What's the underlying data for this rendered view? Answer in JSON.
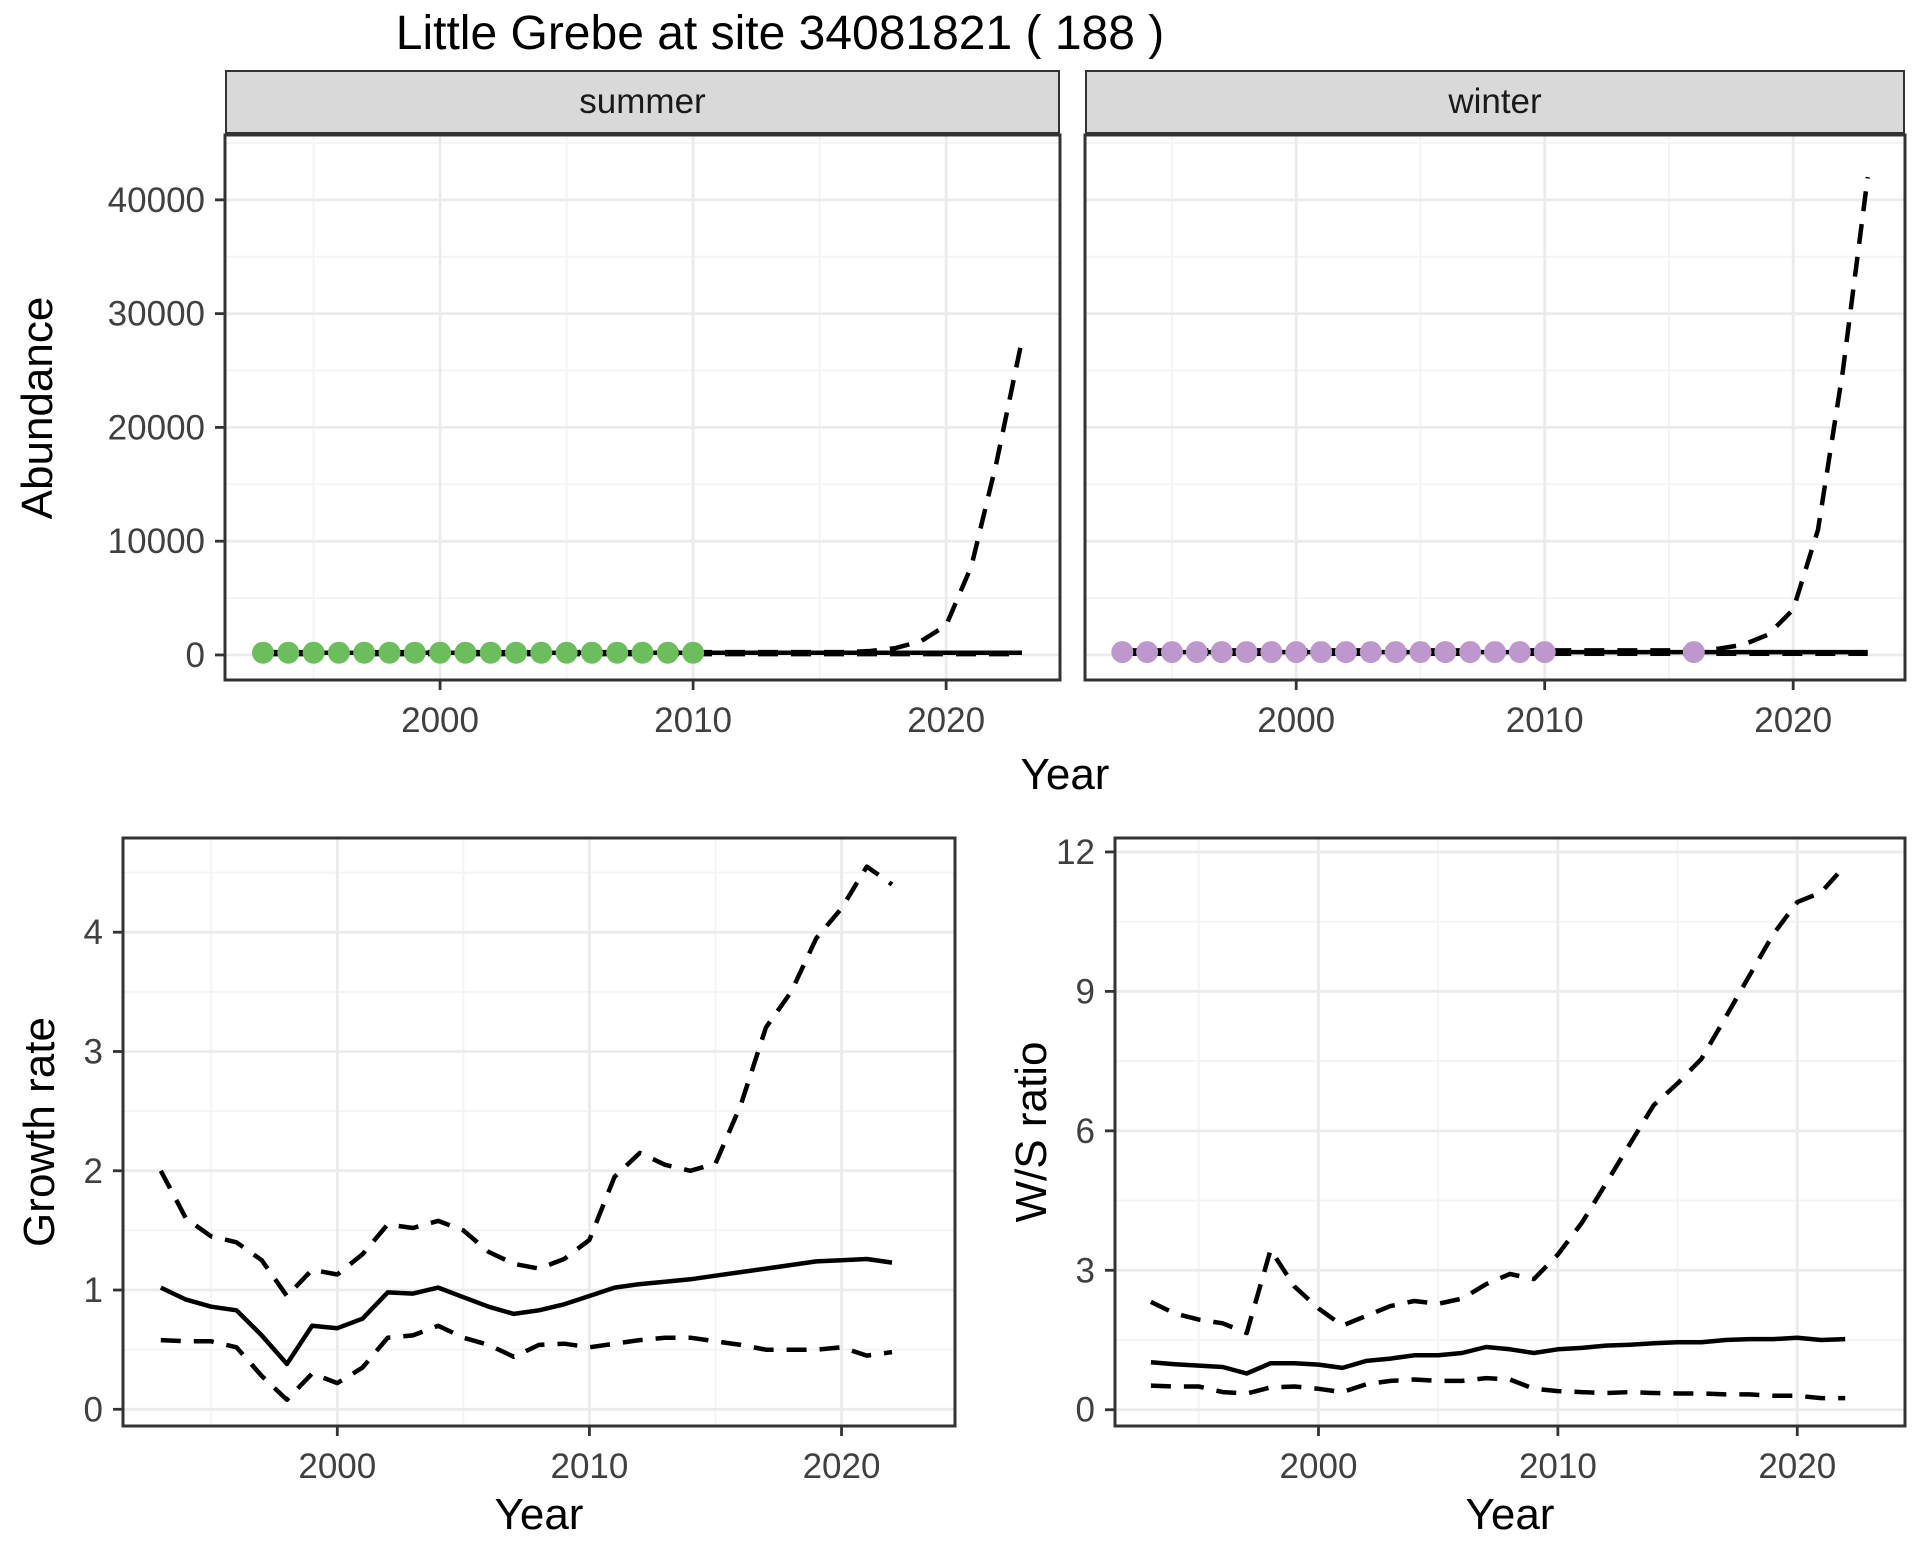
{
  "title": "Little Grebe at site 34081821 ( 188 )",
  "colors": {
    "observed_summer": "#6CBE5C",
    "observed_winter": "#BE97CD",
    "fit_line": "#000000",
    "strip_bg": "#D9D9D9",
    "strip_border": "#333333",
    "panel_border": "#333333",
    "grid_major": "#EBEBEB",
    "grid_minor": "#F4F4F4",
    "tick_label": "#404040",
    "tick_mark": "#333333"
  },
  "chart_data": [
    {
      "type": "line",
      "facet_label": "summer",
      "xlabel": "Year",
      "ylabel": "Abundance",
      "xlim": [
        1991.5,
        2024.5
      ],
      "ylim": [
        -2200,
        45700
      ],
      "xticks": [
        2000,
        2010,
        2020
      ],
      "yticks": [
        0,
        10000,
        20000,
        30000,
        40000
      ],
      "xminor": [
        1995,
        2005,
        2015
      ],
      "yminor": [
        5000,
        15000,
        25000,
        35000,
        45000
      ],
      "grid": true,
      "legend": "none",
      "series": [
        {
          "name": "median_fit",
          "style": "solid",
          "color": "#000000",
          "x": [
            1993,
            1994,
            1995,
            1996,
            1997,
            1998,
            1999,
            2000,
            2001,
            2002,
            2003,
            2004,
            2005,
            2006,
            2007,
            2008,
            2009,
            2010,
            2011,
            2012,
            2013,
            2014,
            2015,
            2016,
            2017,
            2018,
            2019,
            2020,
            2021,
            2022,
            2023
          ],
          "y": [
            200,
            200,
            200,
            200,
            200,
            200,
            200,
            200,
            200,
            200,
            200,
            200,
            200,
            200,
            200,
            200,
            200,
            200,
            200,
            200,
            200,
            200,
            200,
            200,
            200,
            200,
            200,
            200,
            200,
            200,
            200
          ]
        },
        {
          "name": "upper_ci",
          "style": "dashed",
          "color": "#000000",
          "x": [
            1993,
            1994,
            1995,
            1996,
            1997,
            1998,
            1999,
            2000,
            2001,
            2002,
            2003,
            2004,
            2005,
            2006,
            2007,
            2008,
            2009,
            2010,
            2011,
            2012,
            2013,
            2014,
            2015,
            2016,
            2017,
            2018,
            2019,
            2020,
            2021,
            2022,
            2023
          ],
          "y": [
            250,
            250,
            250,
            250,
            250,
            250,
            250,
            250,
            250,
            250,
            250,
            250,
            250,
            250,
            250,
            250,
            250,
            250,
            250,
            250,
            250,
            250,
            250,
            250,
            350,
            600,
            1200,
            2600,
            7800,
            17000,
            27700
          ]
        },
        {
          "name": "lower_ci",
          "style": "dashed",
          "color": "#000000",
          "x": [
            1993,
            1994,
            1995,
            1996,
            1997,
            1998,
            1999,
            2000,
            2001,
            2002,
            2003,
            2004,
            2005,
            2006,
            2007,
            2008,
            2009,
            2010,
            2011,
            2012,
            2013,
            2014,
            2015,
            2016,
            2017,
            2018,
            2019,
            2020,
            2021,
            2022,
            2023
          ],
          "y": [
            80,
            80,
            80,
            80,
            80,
            80,
            80,
            80,
            80,
            80,
            80,
            80,
            80,
            80,
            80,
            80,
            80,
            80,
            80,
            80,
            80,
            80,
            80,
            80,
            80,
            80,
            80,
            80,
            80,
            80,
            80
          ]
        },
        {
          "name": "observed",
          "style": "points",
          "color": "#6CBE5C",
          "x": [
            1993,
            1994,
            1995,
            1996,
            1997,
            1998,
            1999,
            2000,
            2001,
            2002,
            2003,
            2004,
            2005,
            2006,
            2007,
            2008,
            2009,
            2010
          ],
          "y": [
            200,
            200,
            200,
            200,
            200,
            200,
            200,
            200,
            200,
            200,
            200,
            200,
            200,
            200,
            200,
            200,
            200,
            200
          ]
        }
      ]
    },
    {
      "type": "line",
      "facet_label": "winter",
      "xlabel": "Year",
      "ylabel": "Abundance",
      "xlim": [
        1991.5,
        2024.5
      ],
      "ylim": [
        -2200,
        45700
      ],
      "xticks": [
        2000,
        2010,
        2020
      ],
      "yticks": [
        0,
        10000,
        20000,
        30000,
        40000
      ],
      "xminor": [
        1995,
        2005,
        2015
      ],
      "yminor": [
        5000,
        15000,
        25000,
        35000,
        45000
      ],
      "grid": true,
      "legend": "none",
      "series": [
        {
          "name": "median_fit",
          "style": "solid",
          "color": "#000000",
          "x": [
            1993,
            1994,
            1995,
            1996,
            1997,
            1998,
            1999,
            2000,
            2001,
            2002,
            2003,
            2004,
            2005,
            2006,
            2007,
            2008,
            2009,
            2010,
            2011,
            2012,
            2013,
            2014,
            2015,
            2016,
            2017,
            2018,
            2019,
            2020,
            2021,
            2022,
            2023
          ],
          "y": [
            250,
            250,
            250,
            250,
            250,
            250,
            250,
            250,
            250,
            250,
            250,
            250,
            250,
            250,
            250,
            250,
            250,
            250,
            250,
            250,
            250,
            250,
            250,
            250,
            250,
            250,
            250,
            250,
            250,
            250,
            250
          ]
        },
        {
          "name": "upper_ci",
          "style": "dashed",
          "color": "#000000",
          "x": [
            1993,
            1994,
            1995,
            1996,
            1997,
            1998,
            1999,
            2000,
            2001,
            2002,
            2003,
            2004,
            2005,
            2006,
            2007,
            2008,
            2009,
            2010,
            2011,
            2012,
            2013,
            2014,
            2015,
            2016,
            2017,
            2018,
            2019,
            2020,
            2021,
            2022,
            2023
          ],
          "y": [
            400,
            400,
            400,
            400,
            400,
            400,
            400,
            400,
            400,
            400,
            400,
            400,
            400,
            400,
            400,
            400,
            400,
            400,
            400,
            400,
            400,
            400,
            400,
            450,
            550,
            900,
            1800,
            4000,
            11000,
            25000,
            42000
          ]
        },
        {
          "name": "lower_ci",
          "style": "dashed",
          "color": "#000000",
          "x": [
            1993,
            1994,
            1995,
            1996,
            1997,
            1998,
            1999,
            2000,
            2001,
            2002,
            2003,
            2004,
            2005,
            2006,
            2007,
            2008,
            2009,
            2010,
            2011,
            2012,
            2013,
            2014,
            2015,
            2016,
            2017,
            2018,
            2019,
            2020,
            2021,
            2022,
            2023
          ],
          "y": [
            100,
            100,
            100,
            100,
            100,
            100,
            100,
            100,
            100,
            100,
            100,
            100,
            100,
            100,
            100,
            100,
            100,
            100,
            100,
            100,
            100,
            100,
            100,
            100,
            100,
            100,
            100,
            100,
            100,
            100,
            100
          ]
        },
        {
          "name": "observed",
          "style": "points",
          "color": "#BE97CD",
          "x": [
            1993,
            1994,
            1995,
            1996,
            1997,
            1998,
            1999,
            2000,
            2001,
            2002,
            2003,
            2004,
            2005,
            2006,
            2007,
            2008,
            2009,
            2010,
            2016
          ],
          "y": [
            250,
            250,
            250,
            250,
            250,
            250,
            250,
            250,
            250,
            250,
            250,
            250,
            250,
            250,
            250,
            250,
            250,
            250,
            250
          ]
        }
      ]
    },
    {
      "type": "line",
      "facet_label": "",
      "xlabel": "Year",
      "ylabel": "Growth rate",
      "xlim": [
        1991.5,
        2024.5
      ],
      "ylim": [
        -0.14,
        4.79
      ],
      "xticks": [
        2000,
        2010,
        2020
      ],
      "yticks": [
        0,
        1,
        2,
        3,
        4
      ],
      "xminor": [
        1995,
        2005,
        2015
      ],
      "yminor": [
        0.5,
        1.5,
        2.5,
        3.5,
        4.5
      ],
      "grid": true,
      "legend": "none",
      "series": [
        {
          "name": "median",
          "style": "solid",
          "color": "#000000",
          "x": [
            1993,
            1994,
            1995,
            1996,
            1997,
            1998,
            1999,
            2000,
            2001,
            2002,
            2003,
            2004,
            2005,
            2006,
            2007,
            2008,
            2009,
            2010,
            2011,
            2012,
            2013,
            2014,
            2015,
            2016,
            2017,
            2018,
            2019,
            2020,
            2021,
            2022
          ],
          "y": [
            1.02,
            0.92,
            0.86,
            0.83,
            0.62,
            0.38,
            0.7,
            0.68,
            0.76,
            0.98,
            0.97,
            1.02,
            0.94,
            0.86,
            0.8,
            0.83,
            0.88,
            0.95,
            1.02,
            1.05,
            1.07,
            1.09,
            1.12,
            1.15,
            1.18,
            1.21,
            1.24,
            1.25,
            1.26,
            1.23
          ]
        },
        {
          "name": "upper_ci",
          "style": "dashed",
          "color": "#000000",
          "x": [
            1993,
            1994,
            1995,
            1996,
            1997,
            1998,
            1999,
            2000,
            2001,
            2002,
            2003,
            2004,
            2005,
            2006,
            2007,
            2008,
            2009,
            2010,
            2011,
            2012,
            2013,
            2014,
            2015,
            2016,
            2017,
            2018,
            2019,
            2020,
            2021,
            2022
          ],
          "y": [
            2.0,
            1.6,
            1.45,
            1.4,
            1.25,
            0.95,
            1.17,
            1.13,
            1.3,
            1.55,
            1.52,
            1.58,
            1.5,
            1.32,
            1.22,
            1.18,
            1.26,
            1.42,
            1.95,
            2.15,
            2.05,
            2.0,
            2.06,
            2.55,
            3.2,
            3.5,
            3.95,
            4.2,
            4.55,
            4.4
          ]
        },
        {
          "name": "lower_ci",
          "style": "dashed",
          "color": "#000000",
          "x": [
            1993,
            1994,
            1995,
            1996,
            1997,
            1998,
            1999,
            2000,
            2001,
            2002,
            2003,
            2004,
            2005,
            2006,
            2007,
            2008,
            2009,
            2010,
            2011,
            2012,
            2013,
            2014,
            2015,
            2016,
            2017,
            2018,
            2019,
            2020,
            2021,
            2022
          ],
          "y": [
            0.58,
            0.57,
            0.57,
            0.52,
            0.28,
            0.08,
            0.3,
            0.22,
            0.35,
            0.6,
            0.62,
            0.7,
            0.6,
            0.54,
            0.44,
            0.54,
            0.55,
            0.52,
            0.55,
            0.58,
            0.6,
            0.6,
            0.57,
            0.54,
            0.5,
            0.5,
            0.5,
            0.52,
            0.45,
            0.48
          ]
        }
      ]
    },
    {
      "type": "line",
      "facet_label": "",
      "xlabel": "Year",
      "ylabel": "W/S ratio",
      "xlim": [
        1991.5,
        2024.5
      ],
      "ylim": [
        -0.35,
        12.3
      ],
      "xticks": [
        2000,
        2010,
        2020
      ],
      "yticks": [
        0,
        3,
        6,
        9,
        12
      ],
      "xminor": [
        1995,
        2005,
        2015
      ],
      "yminor": [
        1.5,
        4.5,
        7.5,
        10.5
      ],
      "grid": true,
      "legend": "none",
      "series": [
        {
          "name": "median",
          "style": "solid",
          "color": "#000000",
          "x": [
            1993,
            1994,
            1995,
            1996,
            1997,
            1998,
            1999,
            2000,
            2001,
            2002,
            2003,
            2004,
            2005,
            2006,
            2007,
            2008,
            2009,
            2010,
            2011,
            2012,
            2013,
            2014,
            2015,
            2016,
            2017,
            2018,
            2019,
            2020,
            2021,
            2022
          ],
          "y": [
            1.02,
            0.98,
            0.95,
            0.92,
            0.78,
            1.0,
            1.0,
            0.97,
            0.9,
            1.05,
            1.1,
            1.17,
            1.17,
            1.22,
            1.35,
            1.3,
            1.22,
            1.3,
            1.33,
            1.38,
            1.4,
            1.43,
            1.45,
            1.45,
            1.5,
            1.52,
            1.52,
            1.55,
            1.5,
            1.52
          ]
        },
        {
          "name": "upper_ci",
          "style": "dashed",
          "color": "#000000",
          "x": [
            1993,
            1994,
            1995,
            1996,
            1997,
            1998,
            1999,
            2000,
            2001,
            2002,
            2003,
            2004,
            2005,
            2006,
            2007,
            2008,
            2009,
            2010,
            2011,
            2012,
            2013,
            2014,
            2015,
            2016,
            2017,
            2018,
            2019,
            2020,
            2021,
            2022
          ],
          "y": [
            2.32,
            2.07,
            1.94,
            1.86,
            1.65,
            3.44,
            2.65,
            2.18,
            1.81,
            2.02,
            2.23,
            2.34,
            2.28,
            2.39,
            2.7,
            2.92,
            2.81,
            3.34,
            4.02,
            4.86,
            5.71,
            6.55,
            7.02,
            7.55,
            8.44,
            9.34,
            10.23,
            10.92,
            11.13,
            11.71
          ]
        },
        {
          "name": "lower_ci",
          "style": "dashed",
          "color": "#000000",
          "x": [
            1993,
            1994,
            1995,
            1996,
            1997,
            1998,
            1999,
            2000,
            2001,
            2002,
            2003,
            2004,
            2005,
            2006,
            2007,
            2008,
            2009,
            2010,
            2011,
            2012,
            2013,
            2014,
            2015,
            2016,
            2017,
            2018,
            2019,
            2020,
            2021,
            2022
          ],
          "y": [
            0.52,
            0.5,
            0.5,
            0.38,
            0.35,
            0.48,
            0.5,
            0.45,
            0.38,
            0.55,
            0.62,
            0.65,
            0.62,
            0.62,
            0.68,
            0.65,
            0.45,
            0.4,
            0.38,
            0.36,
            0.38,
            0.36,
            0.35,
            0.35,
            0.33,
            0.33,
            0.3,
            0.3,
            0.25,
            0.25
          ]
        }
      ]
    }
  ]
}
